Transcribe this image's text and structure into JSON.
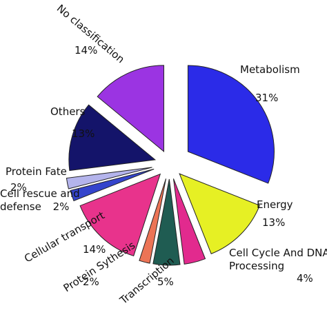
{
  "chart_data": {
    "type": "pie",
    "categories": [
      "Metabolism",
      "Energy",
      "Cell Cycle And DNA Processing",
      "Transcription",
      "Protein Sythesis",
      "Cellular transport",
      "Cell rescue and defense",
      "Protein Fate",
      "Others",
      "No classification"
    ],
    "values": [
      31,
      13,
      4,
      5,
      2,
      14,
      2,
      2,
      13,
      14
    ],
    "value_labels": [
      "31%",
      "13%",
      "4%",
      "5%",
      "2%",
      "14%",
      "2%",
      "2%",
      "13%",
      "14%"
    ],
    "colors": [
      "#2b2be8",
      "#e6f024",
      "#e22a8e",
      "#1f5c52",
      "#ec7456",
      "#e8338c",
      "#3444cc",
      "#b4b4ec",
      "#14146a",
      "#9b34e2"
    ]
  }
}
